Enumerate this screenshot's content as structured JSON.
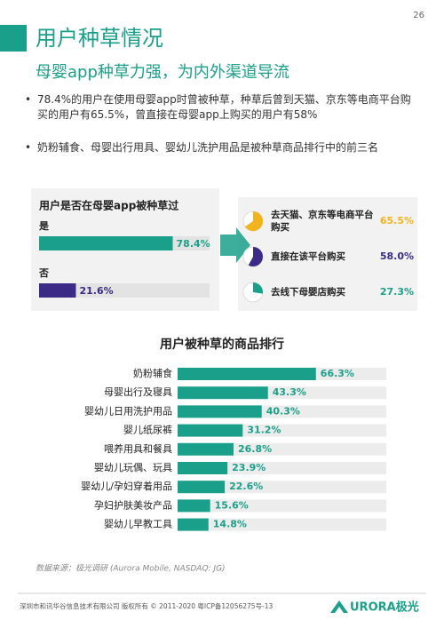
{
  "page_number": "26",
  "title": "用户种草情况",
  "subtitle": "母婴app种草力强，为内外渠道导流",
  "bullets": [
    "78.4%的用户在使用母婴app时曾被种草，种草后曾到天猫、京东等电商平台购买的用户有65.5%，曾直接在母婴app上购买的用户有58%",
    "奶粉辅食、母婴出行用具、婴幼儿洗护用品是被种草商品排行中的前三名"
  ],
  "chart_data": [
    {
      "type": "bar",
      "title": "用户是否在母婴app被种草过",
      "categories": [
        "是",
        "否"
      ],
      "values": [
        78.4,
        21.6
      ],
      "value_labels": [
        "78.4%",
        "21.6%"
      ],
      "colors": [
        "#1aa08a",
        "#3b2a86"
      ],
      "xlim": [
        0,
        100
      ]
    },
    {
      "type": "pie",
      "categories": [
        "去天猫、京东等电商平台购买",
        "直接在该平台购买",
        "去线下母婴店购买"
      ],
      "values": [
        65.5,
        58.0,
        27.3
      ],
      "value_labels": [
        "65.5%",
        "58.0%",
        "27.3%"
      ],
      "colors": [
        "#f2b41d",
        "#3b2a86",
        "#1aa08a"
      ]
    },
    {
      "type": "bar",
      "title": "用户被种草的商品排行",
      "categories": [
        "奶粉辅食",
        "母婴出行及寝具",
        "婴幼儿日用洗护用品",
        "婴儿纸尿裤",
        "喂养用具和餐具",
        "婴幼儿玩偶、玩具",
        "婴幼儿/孕妇穿着用品",
        "孕妇护肤美妆产品",
        "婴幼儿早教工具"
      ],
      "values": [
        66.3,
        43.3,
        40.3,
        31.2,
        26.8,
        23.9,
        22.6,
        15.6,
        14.8
      ],
      "value_labels": [
        "66.3%",
        "43.3%",
        "40.3%",
        "31.2%",
        "26.8%",
        "23.9%",
        "22.6%",
        "15.6%",
        "14.8%"
      ],
      "color": "#1aa08a",
      "xlim": [
        0,
        100
      ]
    }
  ],
  "source": "数据来源：极光调研 (Aurora Mobile, NASDAQ: JG)",
  "footer": "深圳市和讯华谷信息技术有限公司 版权所有 © 2011-2020 粤ICP备12056275号-13",
  "logo": "URORA极光"
}
